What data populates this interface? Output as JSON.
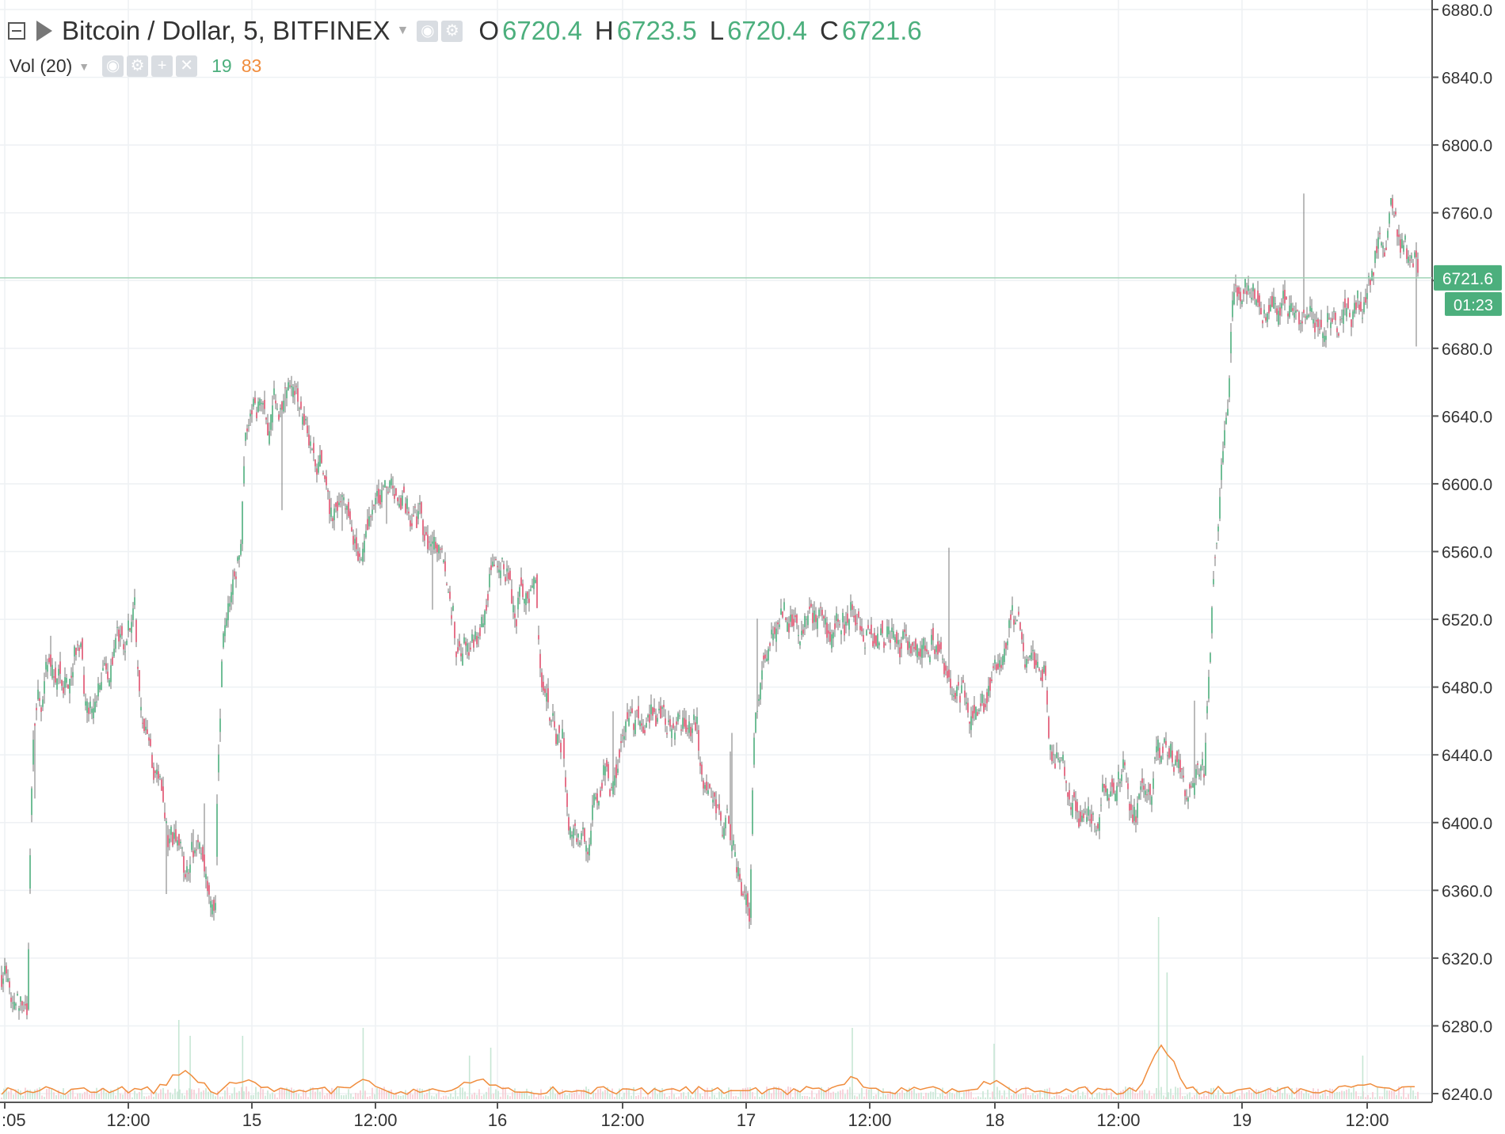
{
  "legend": {
    "symbol": "Bitcoin / Dollar, 5, BITFINEX",
    "open_label": "O",
    "open": "6720.4",
    "high_label": "H",
    "high": "6723.5",
    "low_label": "L",
    "low": "6720.4",
    "close_label": "C",
    "close": "6721.6"
  },
  "volume_legend": {
    "label": "Vol (20)",
    "value1": "19",
    "value2": "83"
  },
  "price_badge": {
    "price": "6721.6",
    "countdown": "01:23"
  },
  "colors": {
    "up": "#4caf7d",
    "down": "#e0506e",
    "wick": "#777777",
    "grid": "#eef1f4",
    "price_line": "#4caf7d",
    "vol_ma": "#f08c3c"
  },
  "chart_data": {
    "type": "candlestick",
    "title": "Bitcoin / Dollar, 5, BITFINEX",
    "ylim": [
      6240,
      6880
    ],
    "y_ticks": [
      "6240.0",
      "6280.0",
      "6320.0",
      "6360.0",
      "6400.0",
      "6440.0",
      "6480.0",
      "6520.0",
      "6560.0",
      "6600.0",
      "6640.0",
      "6680.0",
      "6720.0",
      "6760.0",
      "6800.0",
      "6840.0",
      "6880.0"
    ],
    "x_ticks": [
      ":05",
      "12:00",
      "15",
      "12:00",
      "16",
      "12:00",
      "17",
      "12:00",
      "18",
      "12:00",
      "19",
      "12:00"
    ],
    "last_price": 6721.6,
    "anchor_prices": [
      [
        6310,
        6270
      ],
      [
        6470,
        6495
      ],
      [
        6480,
        6510
      ],
      [
        6460,
        6490
      ],
      [
        6500,
        6535
      ],
      [
        6470,
        6400
      ],
      [
        6400,
        6360
      ],
      [
        6400,
        6340
      ],
      [
        6500,
        6580
      ],
      [
        6660,
        6630
      ],
      [
        6650,
        6660
      ],
      [
        6640,
        6610
      ],
      [
        6580,
        6580
      ],
      [
        6560,
        6580
      ],
      [
        6590,
        6590
      ],
      [
        6590,
        6560
      ],
      [
        6580,
        6500
      ],
      [
        6500,
        6520
      ],
      [
        6540,
        6560
      ],
      [
        6530,
        6540
      ],
      [
        6470,
        6450
      ],
      [
        6400,
        6380
      ],
      [
        6420,
        6430
      ],
      [
        6450,
        6470
      ],
      [
        6470,
        6460
      ],
      [
        6450,
        6460
      ],
      [
        6420,
        6390
      ],
      [
        6400,
        6340
      ],
      [
        6480,
        6520
      ],
      [
        6520,
        6510
      ],
      [
        6530,
        6500
      ],
      [
        6510,
        6520
      ],
      [
        6520,
        6510
      ],
      [
        6510,
        6500
      ],
      [
        6510,
        6500
      ],
      [
        6500,
        6480
      ],
      [
        6470,
        6480
      ],
      [
        6500,
        6520
      ],
      [
        6500,
        6480
      ],
      [
        6440,
        6420
      ],
      [
        6410,
        6400
      ],
      [
        6420,
        6430
      ],
      [
        6410,
        6420
      ],
      [
        6450,
        6440
      ],
      [
        6420,
        6420
      ],
      [
        6500,
        6720
      ],
      [
        6720,
        6710
      ],
      [
        6710,
        6700
      ],
      [
        6700,
        6700
      ],
      [
        6690,
        6700
      ],
      [
        6700,
        6710
      ],
      [
        6720,
        6760
      ],
      [
        6740,
        6720
      ]
    ],
    "volume_spikes": [
      [
        0.125,
        100
      ],
      [
        0.133,
        80
      ],
      [
        0.17,
        80
      ],
      [
        0.255,
        90
      ],
      [
        0.33,
        55
      ],
      [
        0.345,
        65
      ],
      [
        0.6,
        90
      ],
      [
        0.7,
        70
      ],
      [
        0.816,
        230
      ],
      [
        0.822,
        160
      ],
      [
        0.96,
        55
      ]
    ]
  }
}
